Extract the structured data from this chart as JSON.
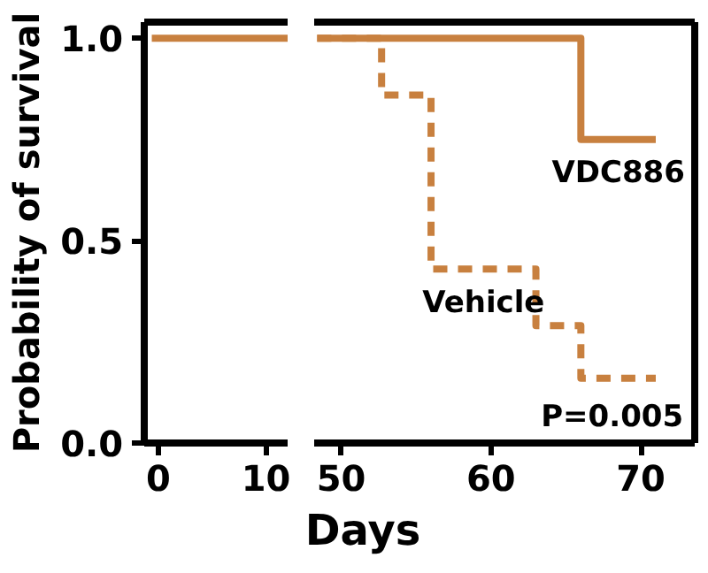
{
  "chart_data": [
    {
      "type": "step",
      "ylabel": "Probability of survival",
      "xlim": [
        -1.3,
        12
      ],
      "xticks": [
        0,
        10
      ],
      "ylim": [
        0,
        1.04
      ],
      "yticks": [
        {
          "value": 0,
          "label": "0.0"
        },
        {
          "value": 0.5,
          "label": "0.5"
        },
        {
          "value": 1,
          "label": "1.0"
        }
      ],
      "grid": false,
      "series": [
        {
          "color": "#c8803f",
          "line_style": "solid",
          "x": [
            -0.6,
            12
          ],
          "values": [
            1,
            1
          ]
        }
      ]
    },
    {
      "type": "step",
      "xlabel": "Days",
      "xlim": [
        48.2,
        73.6
      ],
      "xticks": [
        50,
        60,
        70
      ],
      "ylim": [
        0,
        1.04
      ],
      "tick_labels": "x",
      "grid": false,
      "annotations": [
        "P=0.005"
      ],
      "series": [
        {
          "name": "Vehicle",
          "color": "#c8803f",
          "line_style": "dashed",
          "x": [
            48.4,
            52.7,
            56,
            63,
            66,
            71
          ],
          "values": [
            1,
            0.86,
            0.43,
            0.29,
            0.16,
            0.16
          ]
        },
        {
          "name": "VDC886",
          "color": "#c8803f",
          "line_style": "solid",
          "x": [
            48.4,
            66,
            71
          ],
          "values": [
            1,
            0.75,
            0.75
          ]
        }
      ]
    }
  ]
}
